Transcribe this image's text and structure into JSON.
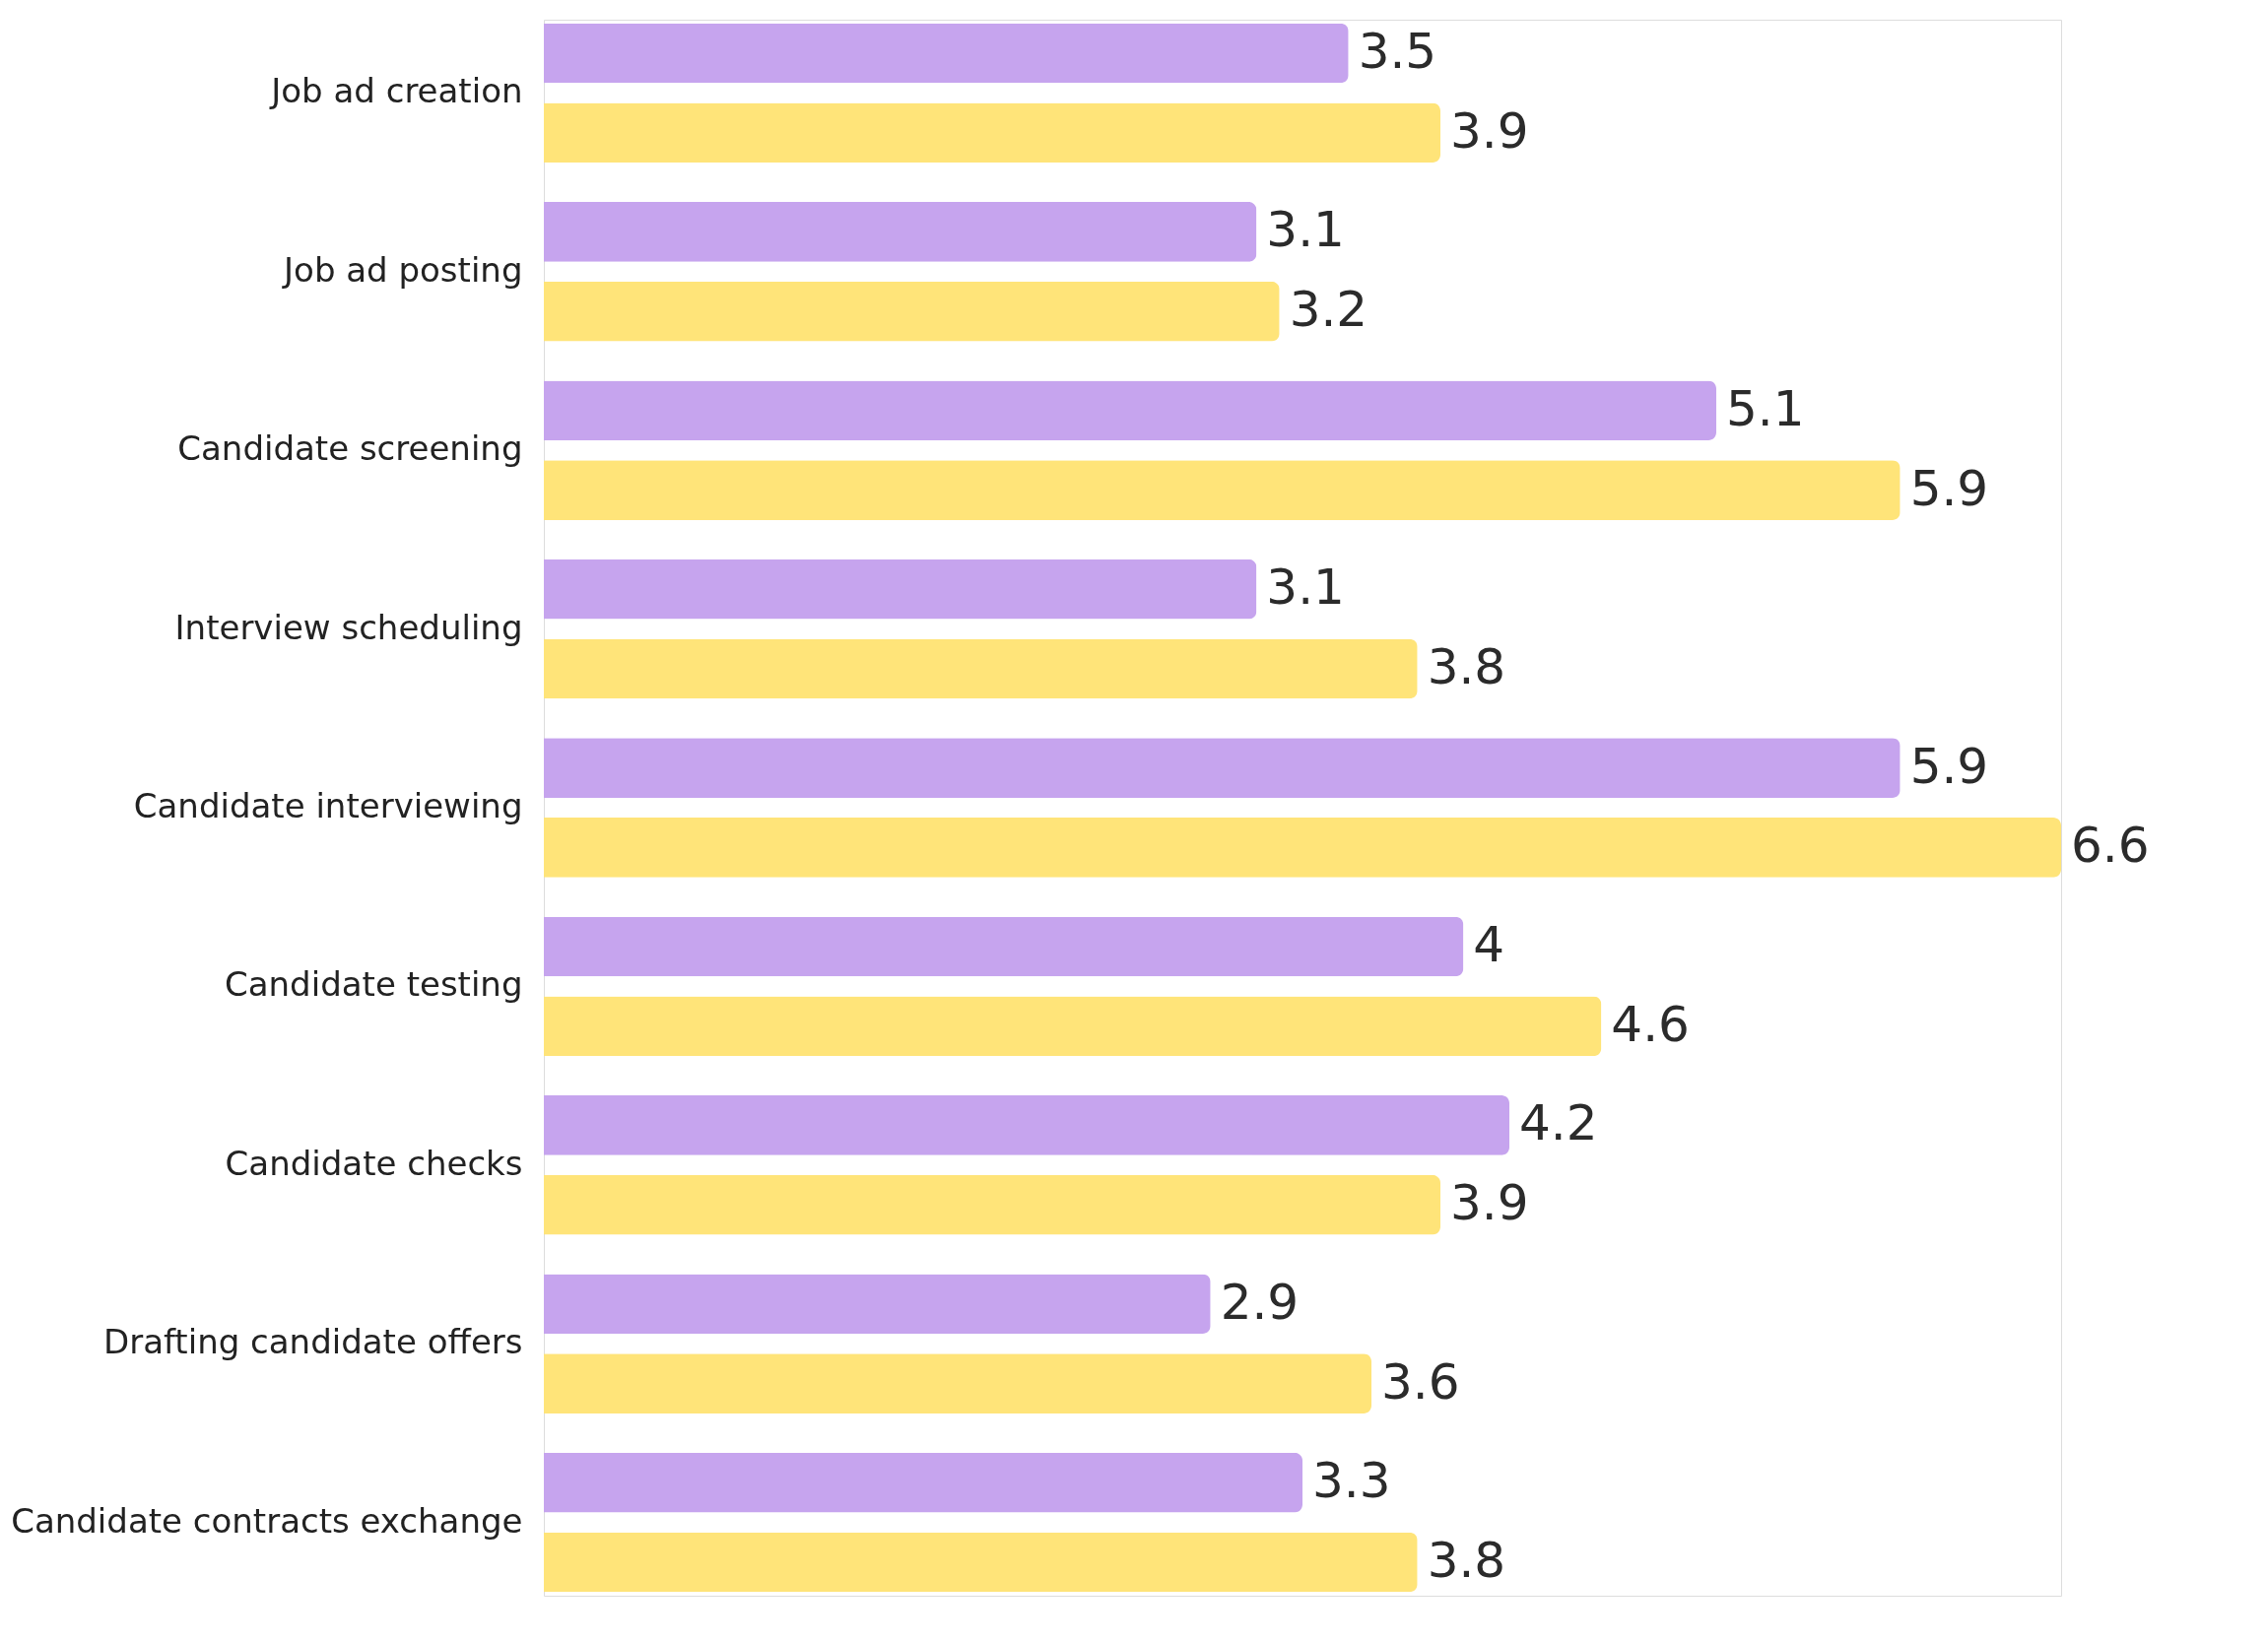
{
  "chart_data": {
    "type": "bar",
    "orientation": "horizontal",
    "tick_labels": "y",
    "data_labels": true,
    "legend": false,
    "grid": false,
    "categories": [
      "Job ad creation",
      "Job ad posting",
      "Candidate screening",
      "Interview scheduling",
      "Candidate interviewing",
      "Candidate testing",
      "Candidate checks",
      "Drafting candidate offers",
      "Candidate contracts exchange"
    ],
    "series": [
      {
        "color": "#c6a4ee",
        "values": [
          3.5,
          3.1,
          5.1,
          3.1,
          5.9,
          4,
          4.2,
          2.9,
          3.3
        ]
      },
      {
        "color": "#ffe479",
        "values": [
          3.9,
          3.2,
          5.9,
          3.8,
          6.6,
          4.6,
          3.9,
          3.6,
          3.8
        ]
      }
    ]
  }
}
